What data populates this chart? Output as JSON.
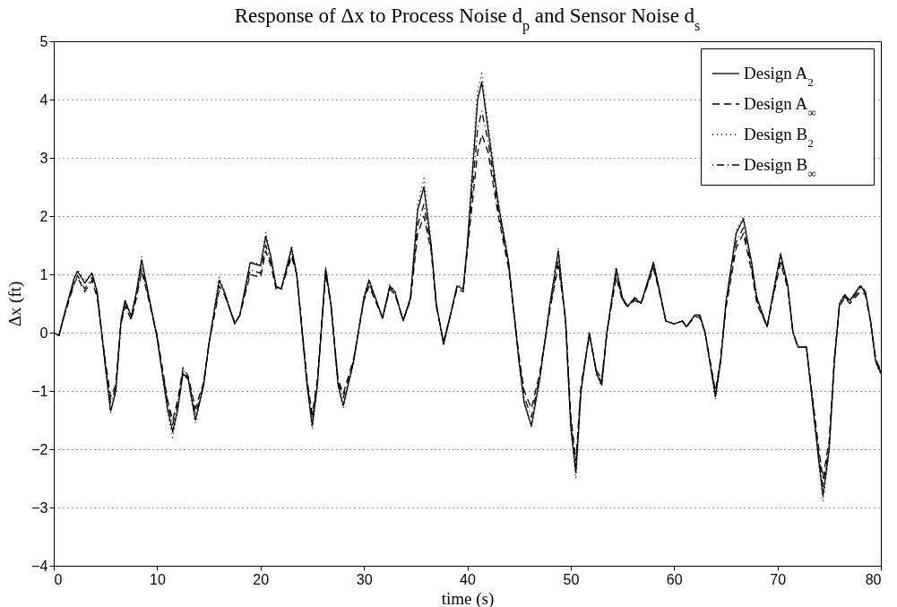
{
  "chart_data": {
    "type": "line",
    "title": "Response of Δx to Process Noise d$_{p}$ and Sensor Noise d$_{s}$",
    "xlabel": "time (s)",
    "ylabel": "Δx (ft)",
    "x": [
      0,
      0.5,
      1,
      2,
      2.3,
      3,
      3.7,
      4.2,
      5,
      5.5,
      6,
      6.5,
      6.9,
      7.5,
      8,
      8.5,
      9,
      10,
      11,
      11.5,
      12,
      12.5,
      13,
      13.7,
      14.5,
      15,
      16,
      16.5,
      17.5,
      18,
      19,
      20,
      20.5,
      21,
      21.5,
      22,
      23,
      23.5,
      24.5,
      25,
      25.5,
      26.3,
      26.8,
      27.5,
      28,
      29,
      30,
      30.5,
      31.8,
      32.5,
      33,
      33.8,
      34.5,
      35.2,
      35.8,
      36.5,
      37,
      37.7,
      38.5,
      39,
      39.6,
      40,
      41,
      41.4,
      42,
      43,
      44,
      45,
      45.5,
      46.2,
      47,
      48,
      48.8,
      49.5,
      50,
      50.5,
      51,
      51.8,
      52.5,
      53,
      53.5,
      54.4,
      55,
      55.5,
      56.2,
      56.8,
      58,
      58.5,
      59.2,
      60,
      60.8,
      61.2,
      62,
      62.5,
      63,
      64,
      64.5,
      65,
      66,
      66.7,
      67.5,
      68,
      69,
      69.5,
      70.3,
      71,
      71.5,
      72,
      72.8,
      74,
      74.4,
      75,
      75.5,
      76,
      76.5,
      77,
      78,
      78.5,
      79,
      79.5,
      80
    ],
    "series": [
      {
        "name": "Design A$_{2}$",
        "color": "#000000",
        "line_style": "solid",
        "values": [
          0,
          -0.05,
          0.3,
          0.95,
          1.05,
          0.85,
          1.02,
          0.7,
          -0.6,
          -1.35,
          -1.0,
          0.2,
          0.55,
          0.28,
          0.7,
          1.25,
          0.8,
          -0.1,
          -1.3,
          -1.7,
          -1.3,
          -0.7,
          -0.8,
          -1.5,
          -0.9,
          -0.2,
          0.9,
          0.7,
          0.15,
          0.3,
          1.2,
          1.15,
          1.65,
          1.3,
          0.8,
          0.75,
          1.45,
          1.0,
          -0.9,
          -1.6,
          -0.9,
          1.1,
          0.5,
          -0.9,
          -1.25,
          -0.5,
          0.6,
          0.9,
          0.25,
          0.8,
          0.7,
          0.2,
          0.6,
          2.1,
          2.5,
          1.5,
          0.5,
          -0.2,
          0.4,
          0.8,
          0.75,
          1.5,
          4.0,
          4.3,
          3.5,
          2.2,
          1.2,
          -0.5,
          -1.2,
          -1.6,
          -0.8,
          0.5,
          1.4,
          0.2,
          -1.6,
          -2.4,
          -1.0,
          0,
          -0.7,
          -0.9,
          0,
          1.1,
          0.6,
          0.45,
          0.6,
          0.5,
          1.2,
          0.8,
          0.2,
          0.15,
          0.2,
          0.1,
          0.3,
          0.3,
          0,
          -1.1,
          -0.5,
          0.5,
          1.7,
          1.95,
          1.2,
          0.6,
          0.1,
          0.6,
          1.35,
          0.8,
          0,
          -0.25,
          -0.25,
          -2.2,
          -2.8,
          -2.0,
          -0.5,
          0.5,
          0.65,
          0.55,
          0.8,
          0.7,
          0.2,
          -0.5,
          -0.7
        ]
      },
      {
        "name": "Design A$_{∞}$",
        "color": "#000000",
        "line_style": "dashed",
        "values": [
          0,
          -0.05,
          0.28,
          0.85,
          0.95,
          0.7,
          0.9,
          0.6,
          -0.5,
          -1.1,
          -0.9,
          0.15,
          0.45,
          0.22,
          0.6,
          1.05,
          0.7,
          -0.05,
          -1.15,
          -1.5,
          -1.15,
          -0.6,
          -0.75,
          -1.3,
          -0.85,
          -0.2,
          0.72,
          0.65,
          0.18,
          0.3,
          1.0,
          0.95,
          1.4,
          1.15,
          0.75,
          0.75,
          1.3,
          1.0,
          -0.8,
          -1.4,
          -0.8,
          1.0,
          0.5,
          -0.8,
          -1.05,
          -0.45,
          0.55,
          0.8,
          0.25,
          0.75,
          0.65,
          0.22,
          0.55,
          1.7,
          2.0,
          1.4,
          0.45,
          -0.15,
          0.4,
          0.75,
          0.7,
          1.4,
          3.1,
          3.4,
          3.1,
          2.0,
          1.1,
          -0.4,
          -1.0,
          -1.3,
          -0.7,
          0.4,
          1.15,
          0.25,
          -1.4,
          -2.2,
          -0.9,
          -0.05,
          -0.65,
          -0.8,
          0,
          0.95,
          0.55,
          0.45,
          0.55,
          0.5,
          1.1,
          0.75,
          0.2,
          0.15,
          0.2,
          0.1,
          0.28,
          0.25,
          0,
          -1.0,
          -0.45,
          0.4,
          1.45,
          1.7,
          1.05,
          0.5,
          0.1,
          0.55,
          1.2,
          0.75,
          0,
          -0.25,
          -0.25,
          -2.0,
          -2.5,
          -1.85,
          -0.45,
          0.45,
          0.6,
          0.5,
          0.7,
          0.65,
          0.2,
          -0.45,
          -0.65
        ]
      },
      {
        "name": "Design B$_{2}$",
        "color": "#000000",
        "line_style": "dotted",
        "values": [
          0,
          -0.05,
          0.3,
          0.97,
          1.08,
          0.88,
          1.04,
          0.72,
          -0.62,
          -1.38,
          -1.02,
          0.2,
          0.57,
          0.28,
          0.72,
          1.3,
          0.82,
          -0.1,
          -1.35,
          -1.8,
          -1.32,
          -0.7,
          -0.8,
          -1.55,
          -0.9,
          -0.2,
          0.95,
          0.72,
          0.15,
          0.3,
          1.22,
          1.17,
          1.72,
          1.32,
          0.8,
          0.75,
          1.5,
          1.0,
          -0.92,
          -1.65,
          -0.92,
          1.12,
          0.5,
          -0.92,
          -1.3,
          -0.5,
          0.62,
          0.92,
          0.25,
          0.82,
          0.72,
          0.2,
          0.62,
          2.2,
          2.65,
          1.55,
          0.5,
          -0.22,
          0.4,
          0.82,
          0.77,
          1.55,
          4.15,
          4.45,
          3.6,
          2.25,
          1.22,
          -0.5,
          -1.22,
          -1.62,
          -0.82,
          0.5,
          1.45,
          0.2,
          -1.65,
          -2.5,
          -1.02,
          0,
          -0.72,
          -0.92,
          0,
          1.12,
          0.62,
          0.45,
          0.62,
          0.5,
          1.22,
          0.82,
          0.2,
          0.15,
          0.2,
          0.1,
          0.3,
          0.3,
          0,
          -1.15,
          -0.5,
          0.52,
          1.75,
          2.0,
          1.22,
          0.62,
          0.1,
          0.62,
          1.38,
          0.82,
          0,
          -0.25,
          -0.25,
          -2.25,
          -2.9,
          -2.05,
          -0.5,
          0.52,
          0.67,
          0.56,
          0.82,
          0.72,
          0.2,
          -0.52,
          -0.72
        ]
      },
      {
        "name": "Design B$_{∞}$",
        "color": "#000000",
        "line_style": "dashdot",
        "values": [
          0,
          -0.05,
          0.28,
          0.88,
          0.98,
          0.75,
          0.95,
          0.65,
          -0.55,
          -1.2,
          -0.95,
          0.18,
          0.5,
          0.25,
          0.65,
          1.12,
          0.75,
          -0.08,
          -1.2,
          -1.58,
          -1.2,
          -0.65,
          -0.78,
          -1.4,
          -0.88,
          -0.2,
          0.8,
          0.68,
          0.16,
          0.3,
          1.08,
          1.02,
          1.5,
          1.2,
          0.78,
          0.75,
          1.36,
          1.0,
          -0.85,
          -1.5,
          -0.85,
          1.05,
          0.5,
          -0.85,
          -1.12,
          -0.48,
          0.58,
          0.85,
          0.25,
          0.78,
          0.68,
          0.21,
          0.58,
          1.85,
          2.2,
          1.45,
          0.48,
          -0.18,
          0.4,
          0.78,
          0.72,
          1.45,
          3.5,
          3.8,
          3.3,
          2.1,
          1.15,
          -0.45,
          -1.1,
          -1.45,
          -0.75,
          0.45,
          1.25,
          0.22,
          -1.5,
          -2.3,
          -0.95,
          -0.02,
          -0.68,
          -0.85,
          0,
          1.0,
          0.58,
          0.45,
          0.58,
          0.5,
          1.15,
          0.78,
          0.2,
          0.15,
          0.2,
          0.1,
          0.29,
          0.28,
          0,
          -1.05,
          -0.48,
          0.45,
          1.55,
          1.8,
          1.12,
          0.55,
          0.1,
          0.58,
          1.28,
          0.78,
          0,
          -0.25,
          -0.25,
          -2.1,
          -2.65,
          -1.95,
          -0.48,
          0.48,
          0.62,
          0.52,
          0.75,
          0.68,
          0.2,
          -0.48,
          -0.68
        ]
      }
    ],
    "xlim": [
      0,
      80
    ],
    "xticks": [
      0,
      10,
      20,
      30,
      40,
      50,
      60,
      70,
      80
    ],
    "ylim": [
      -4,
      5
    ],
    "yticks": [
      -4,
      -3,
      -2,
      -1,
      0,
      1,
      2,
      3,
      4,
      5
    ],
    "grid": "y",
    "legend": "top right"
  }
}
